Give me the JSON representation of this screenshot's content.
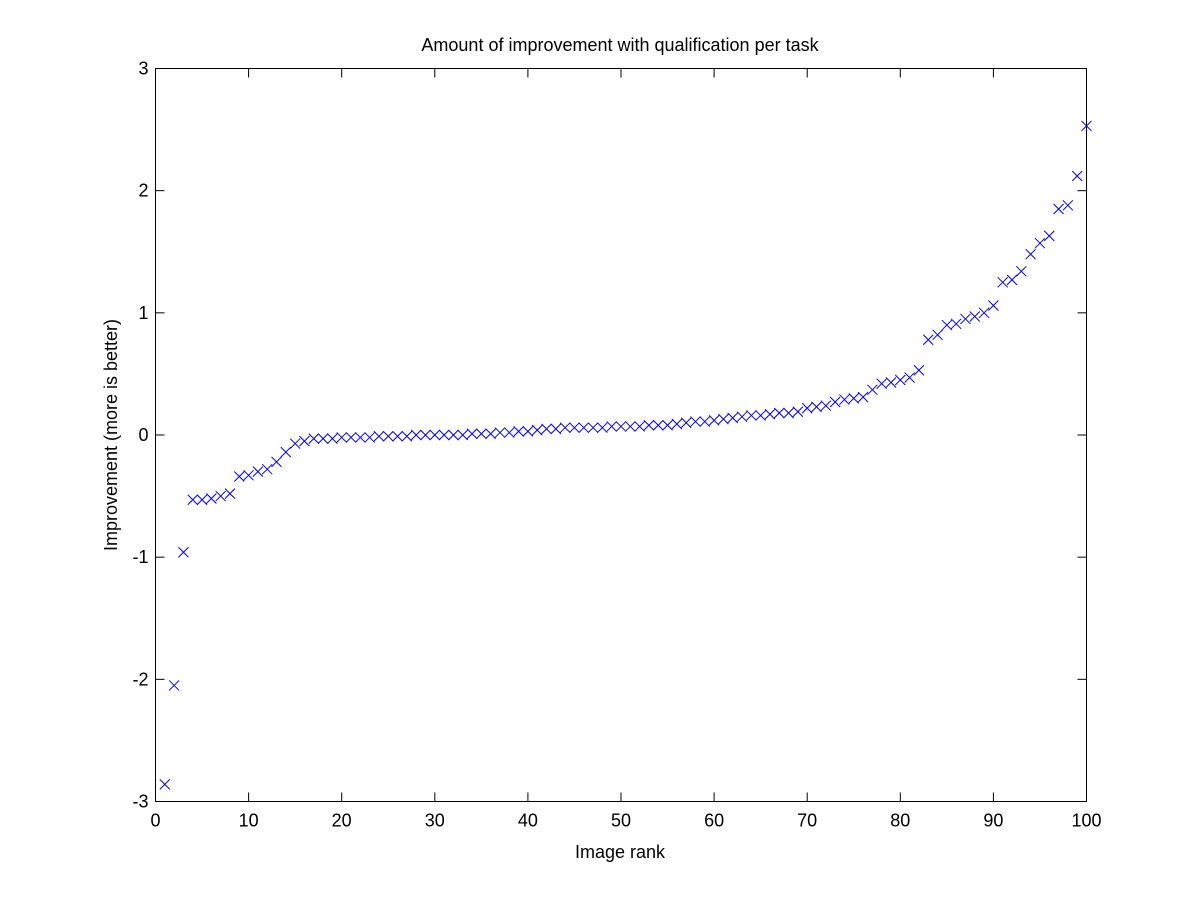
{
  "chart_data": {
    "type": "scatter",
    "title": "Amount of improvement with qualification per task",
    "xlabel": "Image rank",
    "ylabel": "Improvement (more is better)",
    "xlim": [
      0,
      100
    ],
    "ylim": [
      -3,
      3
    ],
    "xticks": [
      0,
      10,
      20,
      30,
      40,
      50,
      60,
      70,
      80,
      90,
      100
    ],
    "yticks": [
      -3,
      -2,
      -1,
      0,
      1,
      2,
      3
    ],
    "grid": false,
    "marker": "x",
    "marker_color": "#0000ff",
    "series": [
      {
        "x": [
          1,
          2,
          3,
          4,
          5,
          6,
          7,
          8,
          9,
          10,
          11,
          12,
          13,
          14,
          15,
          16,
          17,
          18,
          19,
          20,
          21,
          22,
          23,
          24,
          25,
          26,
          27,
          28,
          29,
          30,
          31,
          32,
          33,
          34,
          35,
          36,
          37,
          38,
          39,
          40,
          41,
          42,
          43,
          44,
          45,
          46,
          47,
          48,
          49,
          50,
          51,
          52,
          53,
          54,
          55,
          56,
          57,
          58,
          59,
          60,
          61,
          62,
          63,
          64,
          65,
          66,
          67,
          68,
          69,
          70,
          71,
          72,
          73,
          74,
          75,
          76,
          77,
          78,
          79,
          80,
          81,
          82,
          83,
          84,
          85,
          86,
          87,
          88,
          89,
          90,
          91,
          92,
          93,
          94,
          95,
          96,
          97,
          98,
          99,
          100
        ],
        "values": [
          -2.86,
          -2.05,
          -0.96,
          -0.53,
          -0.53,
          -0.52,
          -0.5,
          -0.48,
          -0.34,
          -0.33,
          -0.3,
          -0.28,
          -0.22,
          -0.14,
          -0.07,
          -0.05,
          -0.03,
          -0.03,
          -0.03,
          -0.02,
          -0.02,
          -0.02,
          -0.02,
          -0.01,
          -0.01,
          -0.01,
          -0.01,
          0.0,
          0.0,
          0.0,
          0.0,
          0.0,
          0.0,
          0.01,
          0.01,
          0.01,
          0.02,
          0.02,
          0.03,
          0.03,
          0.04,
          0.05,
          0.05,
          0.06,
          0.06,
          0.06,
          0.06,
          0.06,
          0.07,
          0.07,
          0.07,
          0.07,
          0.08,
          0.08,
          0.08,
          0.09,
          0.1,
          0.11,
          0.11,
          0.12,
          0.13,
          0.14,
          0.15,
          0.16,
          0.16,
          0.17,
          0.18,
          0.18,
          0.19,
          0.22,
          0.23,
          0.24,
          0.27,
          0.29,
          0.3,
          0.31,
          0.37,
          0.42,
          0.43,
          0.45,
          0.47,
          0.53,
          0.78,
          0.82,
          0.9,
          0.91,
          0.95,
          0.97,
          1.0,
          1.06,
          1.25,
          1.27,
          1.34,
          1.48,
          1.57,
          1.63,
          1.85,
          1.88,
          2.12,
          2.53
        ]
      }
    ]
  }
}
